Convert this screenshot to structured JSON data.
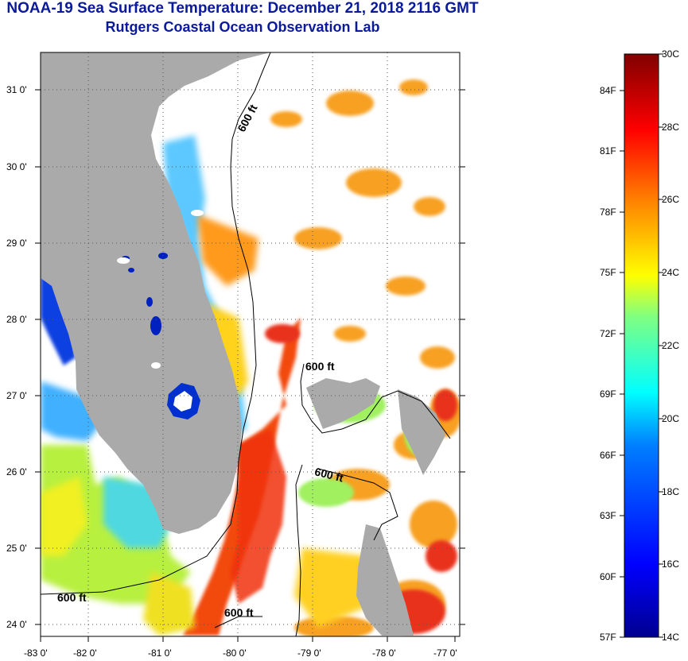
{
  "title": {
    "line1": "NOAA-19 Sea Surface Temperature:  December 21, 2018 2116 GMT",
    "line2": "Rutgers Coastal Ocean Observation Lab"
  },
  "map": {
    "region": "Florida Peninsula and Northern Bahamas",
    "lon_ticks": [
      "-83 0'",
      "-82 0'",
      "-81 0'",
      "-80 0'",
      "-79 0'",
      "-78 0'",
      "-77 0'"
    ],
    "lat_ticks": [
      "31 0'",
      "30 0'",
      "29 0'",
      "28 0'",
      "27 0'",
      "26 0'",
      "25 0'",
      "24 0'"
    ],
    "lon_range": [
      -83,
      -76.8
    ],
    "lat_range": [
      23.8,
      31.4
    ],
    "contour_labels": [
      "600 ft",
      "600 ft",
      "600 ft",
      "600 ft",
      "600 ft"
    ],
    "land_color": "#aaaaaa",
    "cloud_color": "#ffffff"
  },
  "colorbar": {
    "celsius_labels": [
      "30C",
      "28C",
      "26C",
      "24C",
      "22C",
      "20C",
      "18C",
      "16C",
      "14C"
    ],
    "fahrenheit_labels": [
      "84F",
      "81F",
      "78F",
      "75F",
      "72F",
      "69F",
      "66F",
      "63F",
      "60F",
      "57F"
    ],
    "min_c": 14,
    "max_c": 30,
    "colors": [
      "#00008f",
      "#0000ff",
      "#0080ff",
      "#00ffff",
      "#80ff80",
      "#ffff00",
      "#ff8000",
      "#ff0000",
      "#800000"
    ]
  }
}
